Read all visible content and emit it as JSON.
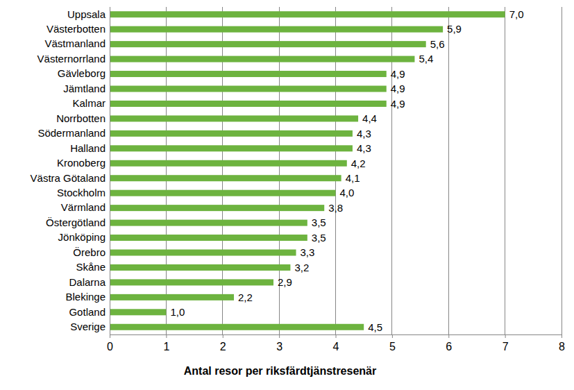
{
  "chart_data": {
    "type": "bar",
    "orientation": "horizontal",
    "categories": [
      "Uppsala",
      "Västerbotten",
      "Västmanland",
      "Västernorrland",
      "Gävleborg",
      "Jämtland",
      "Kalmar",
      "Norrbotten",
      "Södermanland",
      "Halland",
      "Kronoberg",
      "Västra Götaland",
      "Stockholm",
      "Värmland",
      "Östergötland",
      "Jönköping",
      "Örebro",
      "Skåne",
      "Dalarna",
      "Blekinge",
      "Gotland",
      "Sverige"
    ],
    "values": [
      7.0,
      5.9,
      5.6,
      5.4,
      4.9,
      4.9,
      4.9,
      4.4,
      4.3,
      4.3,
      4.2,
      4.1,
      4.0,
      3.8,
      3.5,
      3.5,
      3.3,
      3.2,
      2.9,
      2.2,
      1.0,
      4.5
    ],
    "value_labels": [
      "7,0",
      "5,9",
      "5,6",
      "5,4",
      "4,9",
      "4,9",
      "4,9",
      "4,4",
      "4,3",
      "4,3",
      "4,2",
      "4,1",
      "4,0",
      "3,8",
      "3,5",
      "3,5",
      "3,3",
      "3,2",
      "2,9",
      "2,2",
      "1,0",
      "4,5"
    ],
    "xlabel": "Antal resor per riksfärdtjänstresenär",
    "xlim": [
      0,
      8
    ],
    "xticks": [
      0,
      1,
      2,
      3,
      4,
      5,
      6,
      7,
      8
    ],
    "grid": true,
    "data_labels": true,
    "color": "#6db33f"
  }
}
